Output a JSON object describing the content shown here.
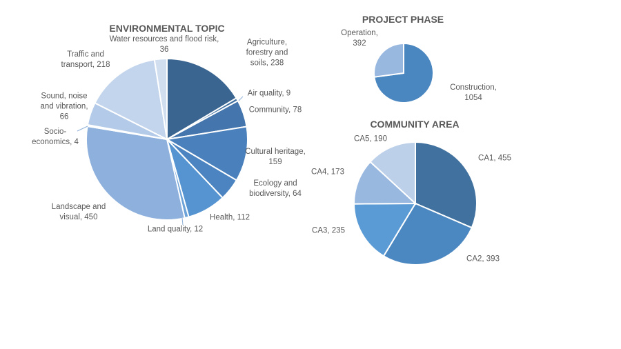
{
  "chart_data": [
    {
      "type": "pie",
      "title": "ENVIRONMENTAL TOPIC",
      "categories": [
        "Agriculture, forestry and soils",
        "Air quality",
        "Community",
        "Cultural heritage",
        "Ecology and biodiversity",
        "Health",
        "Land quality",
        "Landscape and visual",
        "Socio-economics",
        "Sound, noise and vibration",
        "Traffic and transport",
        "Water resources and flood risk"
      ],
      "values": [
        238,
        9,
        78,
        159,
        64,
        112,
        12,
        450,
        4,
        66,
        218,
        36
      ],
      "labels": [
        "Agriculture, forestry and soils, 238",
        "Air quality, 9",
        "Community, 78",
        "Cultural heritage, 159",
        "Ecology and biodiversity, 64",
        "Health, 112",
        "Land quality, 12",
        "Landscape and visual, 450",
        "Socio-economics, 4",
        "Sound, noise and vibration, 66",
        "Traffic and transport, 218",
        "Water resources and flood risk, 36"
      ],
      "colors": [
        "#3a6591",
        "#3f6fa0",
        "#4476ad",
        "#4a80bb",
        "#4b84c0",
        "#5594d0",
        "#6ea3d8",
        "#8db0dd",
        "#a2bfe3",
        "#b3cbe8",
        "#c3d5ed",
        "#d0def0"
      ]
    },
    {
      "type": "pie",
      "title": "PROJECT PHASE",
      "categories": [
        "Construction",
        "Operation"
      ],
      "values": [
        1054,
        392
      ],
      "labels": [
        "Construction, 1054",
        "Operation, 392"
      ],
      "colors": [
        "#4a86c0",
        "#98b8e0"
      ]
    },
    {
      "type": "pie",
      "title": "COMMUNITY AREA",
      "categories": [
        "CA1",
        "CA2",
        "CA3",
        "CA4",
        "CA5"
      ],
      "values": [
        455,
        393,
        235,
        173,
        190
      ],
      "labels": [
        "CA1, 455",
        "CA2, 393",
        "CA3, 235",
        "CA4, 173",
        "CA5, 190"
      ],
      "colors": [
        "#41719f",
        "#4b87c0",
        "#5b9bd5",
        "#98b8e0",
        "#bcd0ea"
      ]
    }
  ]
}
